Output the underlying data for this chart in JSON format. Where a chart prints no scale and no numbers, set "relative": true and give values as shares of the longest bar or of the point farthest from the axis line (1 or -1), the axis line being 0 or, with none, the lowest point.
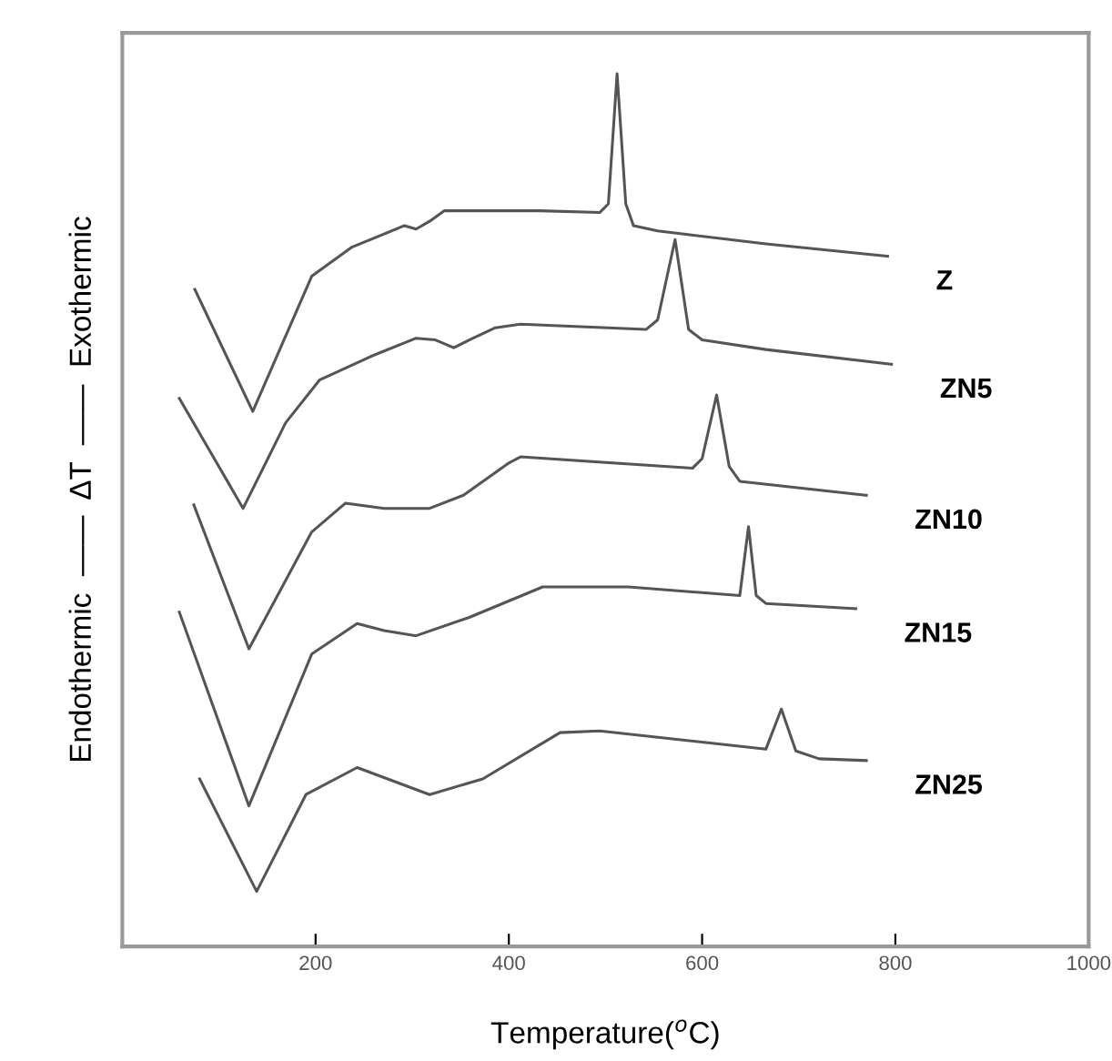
{
  "chart_data": {
    "type": "line",
    "relative": true,
    "xlabel": "Temperature($^{o}$C)",
    "ylabel": "Endothermic  ——  ΔT  ——  Exothermic",
    "xlim": [
      0,
      1000
    ],
    "xticks": [
      200,
      400,
      600,
      800,
      1000
    ],
    "tick_labels": "x",
    "grid": false,
    "legend": false,
    "marker": "none",
    "line_style": "solid",
    "series": [
      {
        "name": "Z",
        "color": "#555555",
        "x": [
          75,
          135,
          196,
          237,
          292,
          304,
          318,
          333,
          432,
          494,
          503,
          512,
          521,
          529,
          554,
          666,
          792
        ],
        "values": [
          0.753,
          0.613,
          0.768,
          0.801,
          0.826,
          0.822,
          0.831,
          0.843,
          0.843,
          0.841,
          0.851,
          1.0,
          0.851,
          0.826,
          0.82,
          0.805,
          0.791
        ]
      },
      {
        "name": "ZN5",
        "color": "#555555",
        "x": [
          59,
          125,
          169,
          204,
          257,
          304,
          324,
          343,
          359,
          386,
          412,
          542,
          554,
          572,
          586,
          600,
          666,
          796
        ],
        "values": [
          0.628,
          0.502,
          0.6,
          0.649,
          0.676,
          0.697,
          0.695,
          0.686,
          0.695,
          0.709,
          0.713,
          0.707,
          0.718,
          0.81,
          0.707,
          0.695,
          0.684,
          0.667
        ]
      },
      {
        "name": "ZN10",
        "color": "#555555",
        "x": [
          74,
          131,
          196,
          231,
          271,
          318,
          353,
          400,
          412,
          590,
          600,
          615,
          628,
          639,
          770
        ],
        "values": [
          0.506,
          0.341,
          0.475,
          0.508,
          0.502,
          0.502,
          0.517,
          0.554,
          0.561,
          0.548,
          0.559,
          0.632,
          0.55,
          0.533,
          0.517
        ]
      },
      {
        "name": "ZN15",
        "color": "#555555",
        "x": [
          59,
          131,
          196,
          243,
          271,
          304,
          359,
          435,
          524,
          639,
          648,
          656,
          666,
          759
        ],
        "values": [
          0.383,
          0.161,
          0.335,
          0.37,
          0.362,
          0.356,
          0.377,
          0.412,
          0.412,
          0.402,
          0.481,
          0.402,
          0.393,
          0.387
        ]
      },
      {
        "name": "ZN25",
        "color": "#555555",
        "x": [
          80,
          139,
          190,
          243,
          318,
          373,
          453,
          494,
          666,
          682,
          697,
          721,
          770
        ],
        "values": [
          0.192,
          0.063,
          0.174,
          0.205,
          0.174,
          0.192,
          0.245,
          0.247,
          0.226,
          0.272,
          0.224,
          0.215,
          0.213
        ]
      }
    ]
  }
}
